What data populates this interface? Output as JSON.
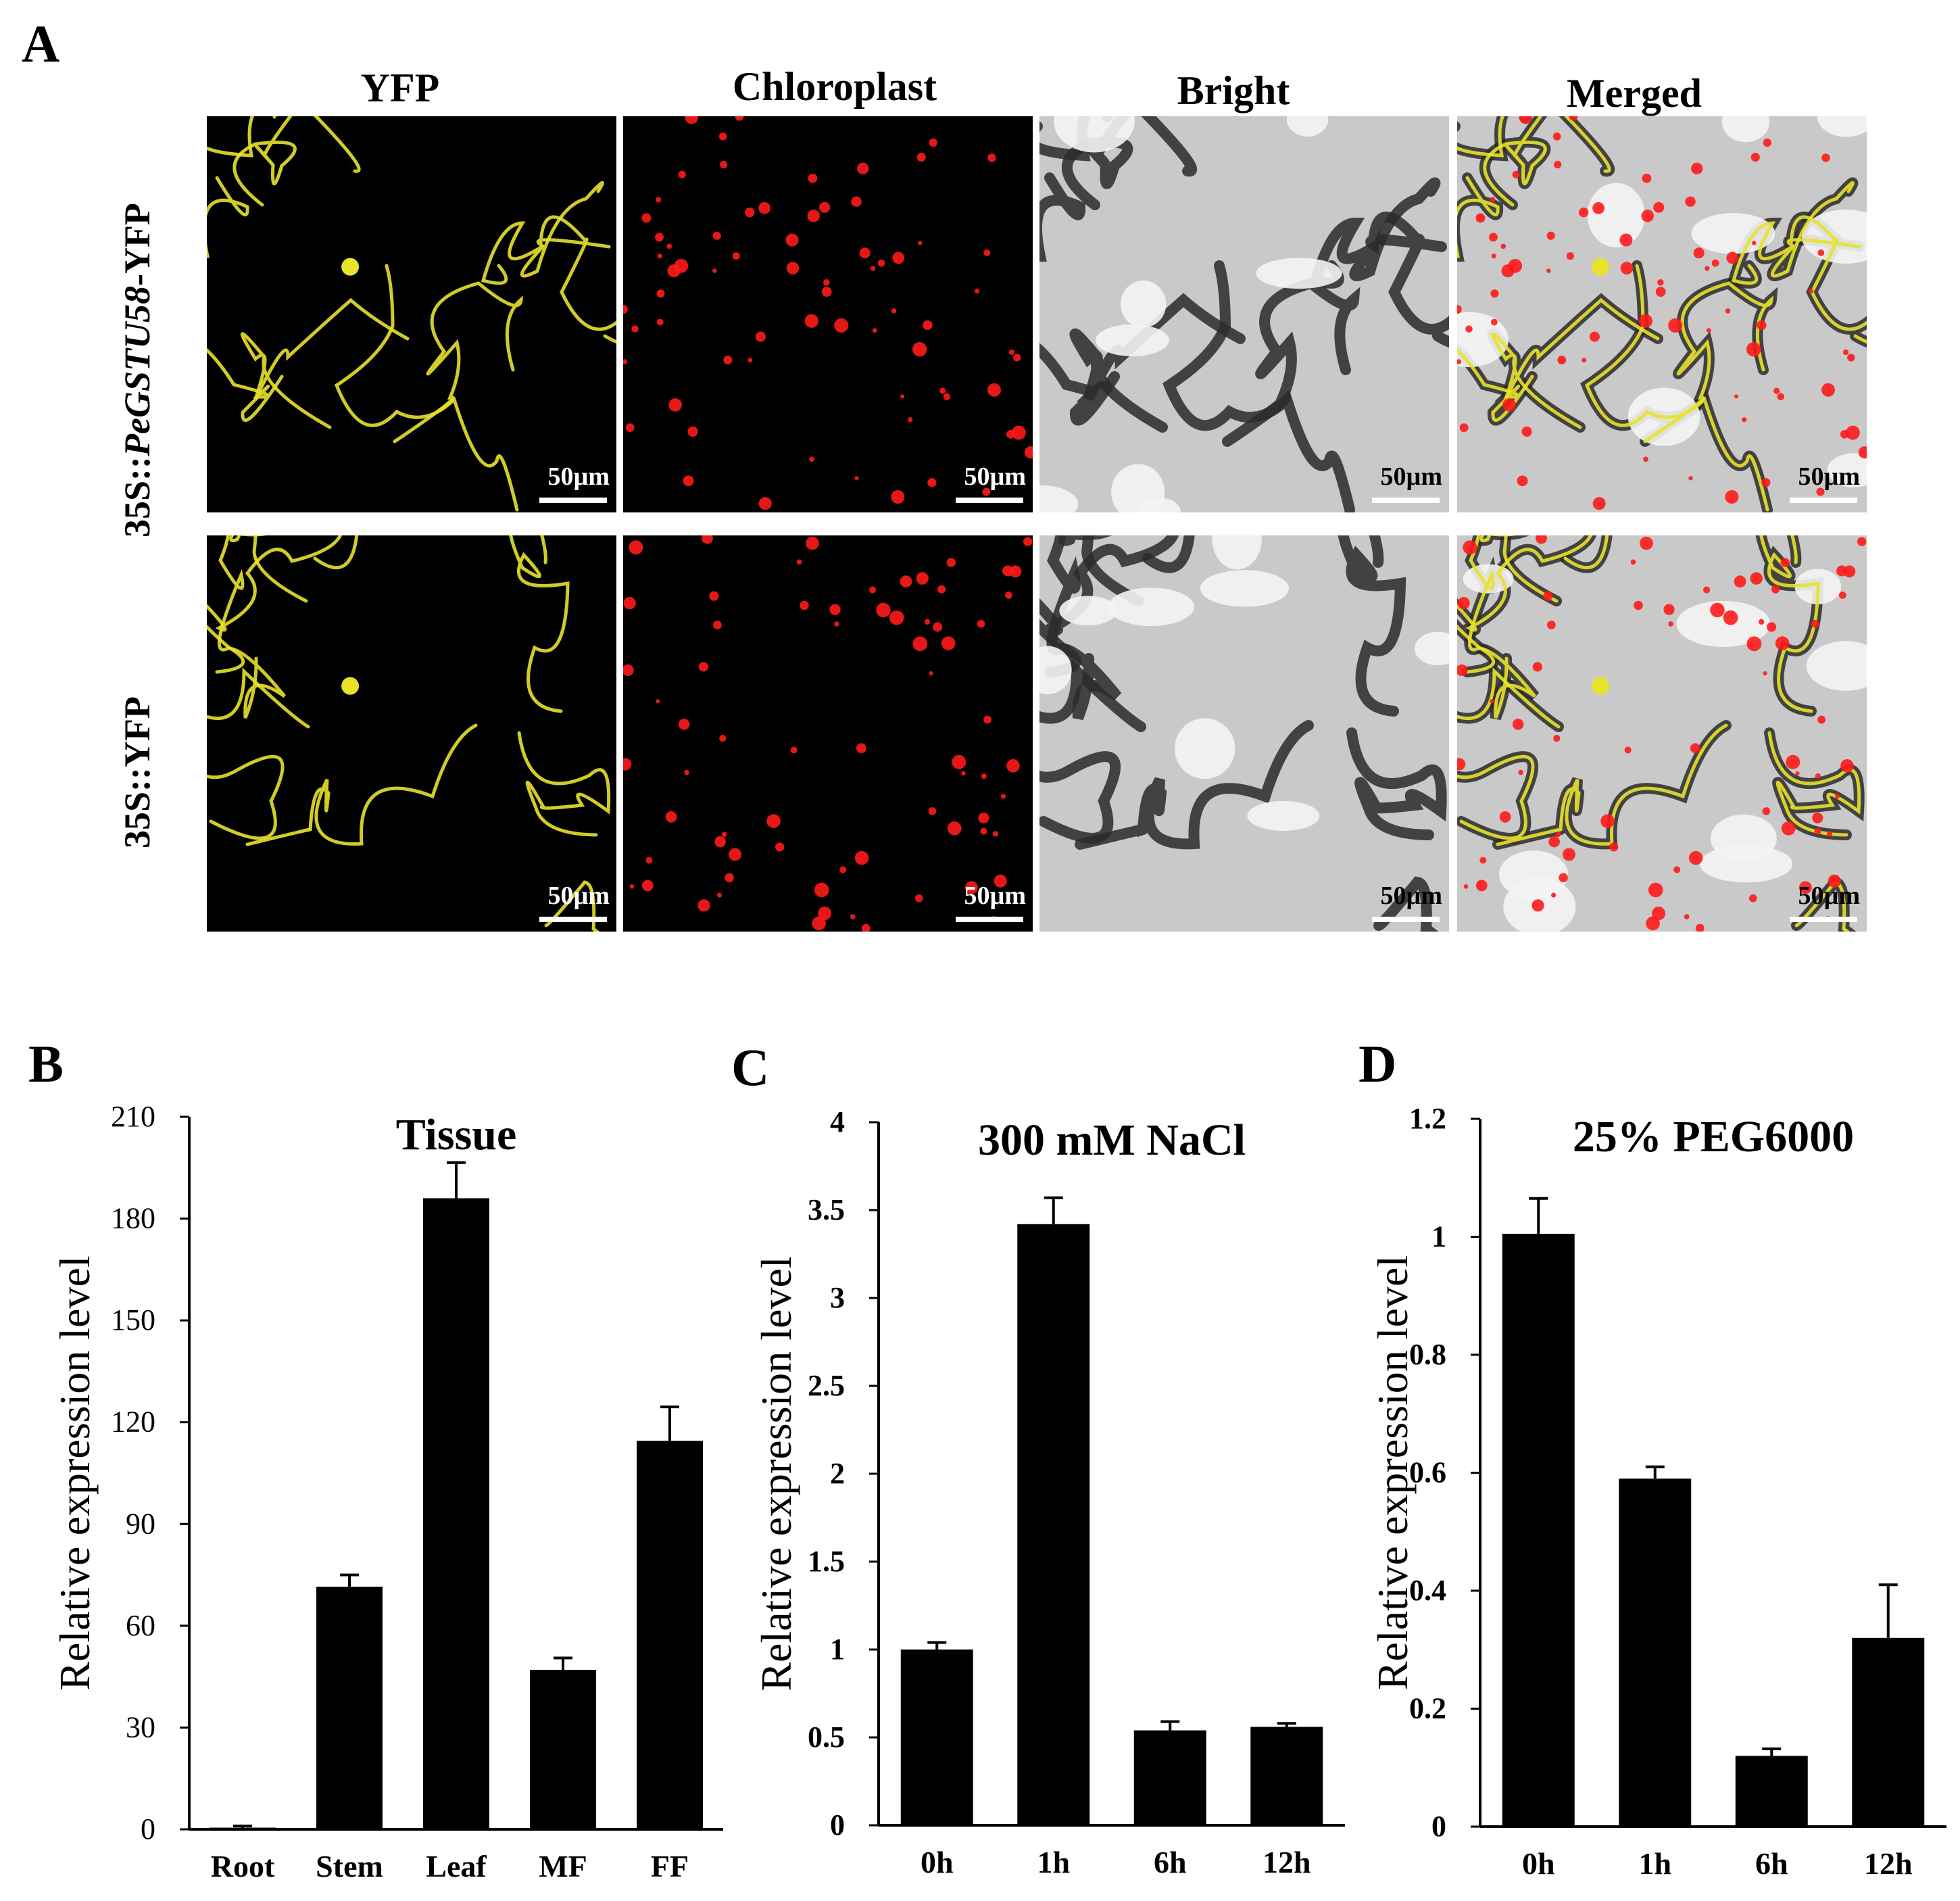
{
  "panel_a": {
    "letter": "A",
    "columns": [
      "YFP",
      "Chloroplast",
      "Bright",
      "Merged"
    ],
    "rows": [
      {
        "label_prefix": "35S::",
        "label_gene": "PeGSTU58",
        "label_suffix": "-YFP"
      },
      {
        "label_prefix": "35S::YFP",
        "label_gene": "",
        "label_suffix": ""
      }
    ],
    "scale_bar_text": "50µm",
    "colors": {
      "yfp": "#e8e22a",
      "chloroplast": "#ff1a1a",
      "bright": "#c9c9c9"
    }
  },
  "chart_data": [
    {
      "panel": "B",
      "type": "bar",
      "title": "Tissue",
      "ylabel": "Relative expression level",
      "xlabel": "",
      "categories": [
        "Root",
        "Stem",
        "Leaf",
        "MF",
        "FF"
      ],
      "values": [
        0.5,
        71.5,
        186,
        47,
        114.5
      ],
      "errors": [
        0.5,
        3.5,
        10.5,
        3.5,
        10
      ],
      "ylim": [
        0,
        210
      ],
      "yticks": [
        0,
        30,
        60,
        90,
        120,
        150,
        180,
        210
      ],
      "ytick_labels": [
        "0",
        "30",
        "60",
        "90",
        "120",
        "150",
        "180",
        "210"
      ],
      "bar_color": "#000000",
      "grid": false
    },
    {
      "panel": "C",
      "type": "bar",
      "title": "300 mM NaCl",
      "ylabel": "Relative expression level",
      "xlabel": "",
      "categories": [
        "0h",
        "1h",
        "6h",
        "12h"
      ],
      "values": [
        1.0,
        3.42,
        0.54,
        0.56
      ],
      "errors": [
        0.04,
        0.15,
        0.05,
        0.02
      ],
      "ylim": [
        0,
        4
      ],
      "yticks": [
        0,
        0.5,
        1,
        1.5,
        2,
        2.5,
        3,
        3.5,
        4
      ],
      "ytick_labels": [
        "0",
        "0.5",
        "1",
        "1.5",
        "2",
        "2.5",
        "3",
        "3.5",
        "4"
      ],
      "bar_color": "#000000",
      "grid": false
    },
    {
      "panel": "D",
      "type": "bar",
      "title": "25% PEG6000",
      "ylabel": "Relative expression level",
      "xlabel": "",
      "categories": [
        "0h",
        "1h",
        "6h",
        "12h"
      ],
      "values": [
        1.005,
        0.59,
        0.12,
        0.32
      ],
      "errors": [
        0.06,
        0.02,
        0.012,
        0.09
      ],
      "ylim": [
        0,
        1.2
      ],
      "yticks": [
        0,
        0.2,
        0.4,
        0.6,
        0.8,
        1,
        1.2
      ],
      "ytick_labels": [
        "0",
        "0.2",
        "0.4",
        "0.6",
        "0.8",
        "1",
        "1.2"
      ],
      "bar_color": "#000000",
      "grid": false
    }
  ]
}
